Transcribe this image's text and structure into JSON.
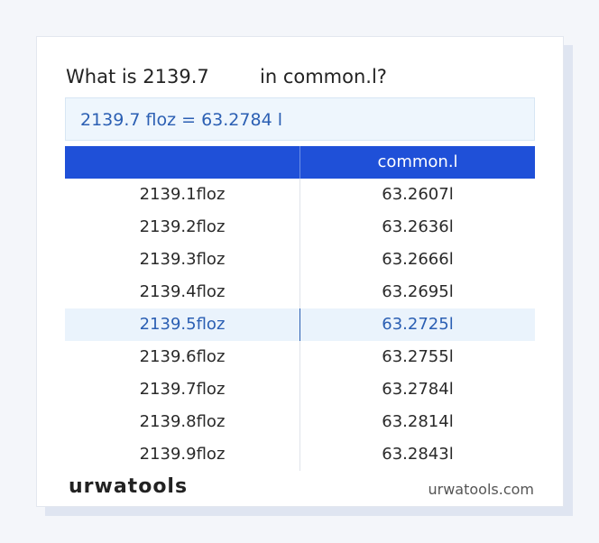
{
  "title": {
    "before": "What is 2139.7",
    "after": "in common.l?"
  },
  "result": "2139.7 floz = 63.2784 l",
  "table": {
    "header": "common.l",
    "highlight_row": 4,
    "rows": [
      [
        "2139.1floz",
        "63.2607l"
      ],
      [
        "2139.2floz",
        "63.2636l"
      ],
      [
        "2139.3floz",
        "63.2666l"
      ],
      [
        "2139.4floz",
        "63.2695l"
      ],
      [
        "2139.5floz",
        "63.2725l"
      ],
      [
        "2139.6floz",
        "63.2755l"
      ],
      [
        "2139.7floz",
        "63.2784l"
      ],
      [
        "2139.8floz",
        "63.2814l"
      ],
      [
        "2139.9floz",
        "63.2843l"
      ]
    ]
  },
  "footer": {
    "logo": "urwatools",
    "site": "urwatools.com"
  }
}
